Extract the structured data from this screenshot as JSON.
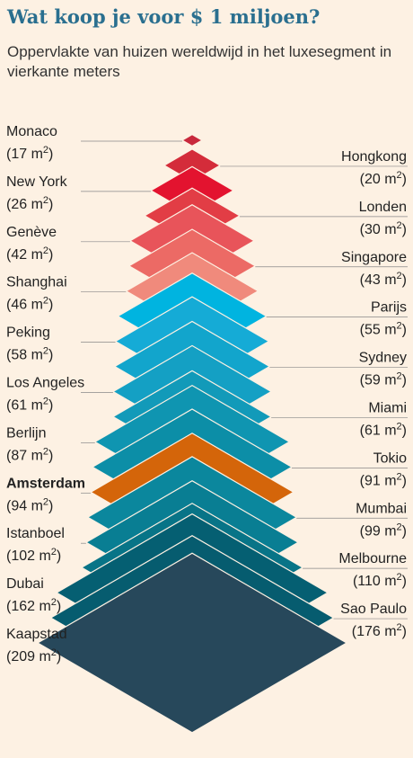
{
  "title": "Wat koop je voor $ 1 miljoen?",
  "subtitle": "Oppervlakte van huizen wereldwijd in het luxesegment in vierkante meters",
  "chart_data": {
    "type": "bar",
    "unit": "m",
    "unit_exp": "2",
    "highlight": "Amsterdam",
    "categories": [
      "Monaco",
      "Hongkong",
      "New York",
      "Londen",
      "Genève",
      "Singapore",
      "Shanghai",
      "Parijs",
      "Peking",
      "Sydney",
      "Los Angeles",
      "Miami",
      "Berlijn",
      "Tokio",
      "Amsterdam",
      "Mumbai",
      "Istanboel",
      "Melbourne",
      "Dubai",
      "Sao Paulo",
      "Kaapstad"
    ],
    "values": [
      17,
      20,
      26,
      30,
      42,
      43,
      46,
      55,
      58,
      59,
      61,
      61,
      87,
      91,
      94,
      99,
      102,
      110,
      162,
      176,
      209
    ],
    "colors": [
      "#c8283c",
      "#d42c3a",
      "#e3132f",
      "#e23d45",
      "#e8545a",
      "#ec6a65",
      "#f08a7c",
      "#00b4e0",
      "#15abd6",
      "#12a5cc",
      "#14a0c4",
      "#129ab9",
      "#0f95b1",
      "#0c8ea7",
      "#d4650a",
      "#0b879d",
      "#097e93",
      "#087487",
      "#055f72",
      "#065c6f",
      "#27485b"
    ],
    "sides": [
      "left",
      "right",
      "left",
      "right",
      "left",
      "right",
      "left",
      "right",
      "left",
      "right",
      "left",
      "right",
      "left",
      "right",
      "left",
      "right",
      "left",
      "right",
      "left",
      "right",
      "left"
    ]
  }
}
